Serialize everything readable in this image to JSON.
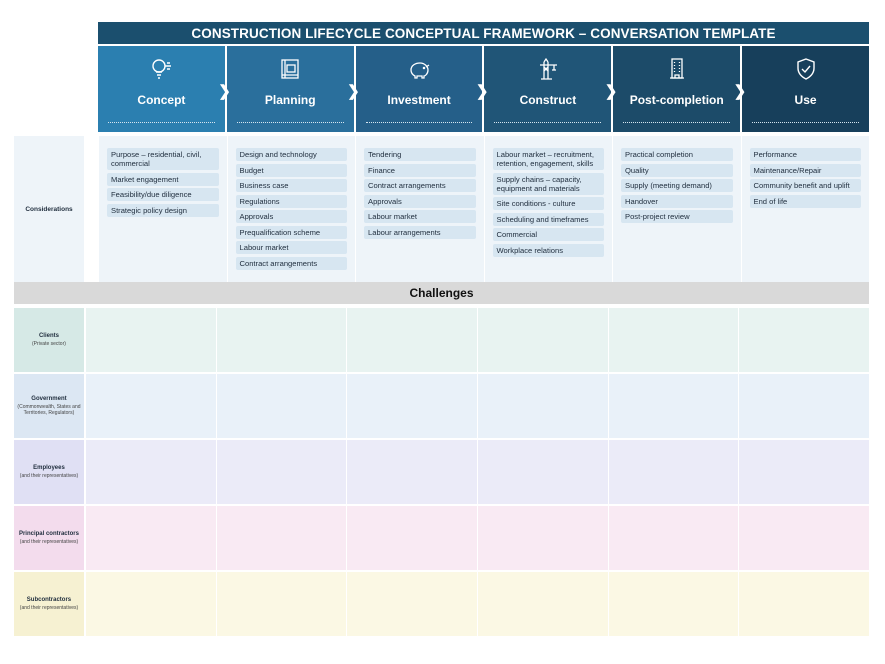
{
  "title": "CONSTRUCTION LIFECYCLE CONCEPTUAL FRAMEWORK – CONVERSATION TEMPLATE",
  "colors": {
    "title_bg": "#1b4f6e",
    "stage_gradient": [
      "#2b7fb0",
      "#2a6f9c",
      "#255f89",
      "#205577",
      "#1c4b69",
      "#173f5b"
    ],
    "considerations_bg": "#eef4f9",
    "chip_bg": "#d7e6f1",
    "challenges_bg": "#d9d9d9",
    "row_colors": [
      "#e8f3f1",
      "#e9f1f9",
      "#ebebf8",
      "#f9eaf3",
      "#fbf8e4"
    ],
    "label_colors": [
      "#d6e9e6",
      "#dce7f3",
      "#e0e0f4",
      "#f3dced",
      "#f6f1d2"
    ]
  },
  "stages": [
    {
      "label": "Concept",
      "icon": "lightbulb-icon"
    },
    {
      "label": "Planning",
      "icon": "blueprint-icon"
    },
    {
      "label": "Investment",
      "icon": "piggy-bank-icon"
    },
    {
      "label": "Construct",
      "icon": "crane-icon"
    },
    {
      "label": "Post-completion",
      "icon": "building-icon"
    },
    {
      "label": "Use",
      "icon": "shield-check-icon"
    }
  ],
  "considerations": {
    "label": "Considerations",
    "columns": [
      [
        "Purpose – residential, civil, commercial",
        "Market engagement",
        "Feasibility/due diligence",
        "Strategic policy design"
      ],
      [
        "Design and technology",
        "Budget",
        "Business case",
        "Regulations",
        "Approvals",
        "Prequalification scheme",
        "Labour market",
        "Contract arrangements"
      ],
      [
        "Tendering",
        "Finance",
        "Contract arrangements",
        "Approvals",
        "Labour market",
        "Labour arrangements"
      ],
      [
        "Labour market – recruitment, retention, engagement, skills",
        "Supply chains – capacity, equipment and materials",
        "Site conditions - culture",
        "Scheduling and timeframes",
        "Commercial",
        "Workplace relations"
      ],
      [
        "Practical completion",
        "Quality",
        "Supply (meeting demand)",
        "Handover",
        "Post-project review"
      ],
      [
        "Performance",
        "Maintenance/Repair",
        "Community benefit and uplift",
        "End of life"
      ]
    ]
  },
  "challenges_label": "Challenges",
  "stakeholders": [
    {
      "name": "Clients",
      "sub": "(Private sector)"
    },
    {
      "name": "Government",
      "sub": "(Commonwealth, States and Territories, Regulators)"
    },
    {
      "name": "Employees",
      "sub": "(and their representatives)"
    },
    {
      "name": "Principal contractors",
      "sub": "(and their representatives)"
    },
    {
      "name": "Subcontractors",
      "sub": "(and their representatives)"
    }
  ]
}
